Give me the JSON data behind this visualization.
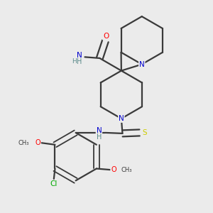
{
  "bg_color": "#ebebeb",
  "atom_colors": {
    "O": "#ff0000",
    "N": "#0000cd",
    "S": "#cccc00",
    "Cl": "#00aa00",
    "C": "#3a3a3a",
    "H": "#5a8a8a"
  },
  "bond_color": "#3a3a3a",
  "bond_width": 1.6
}
